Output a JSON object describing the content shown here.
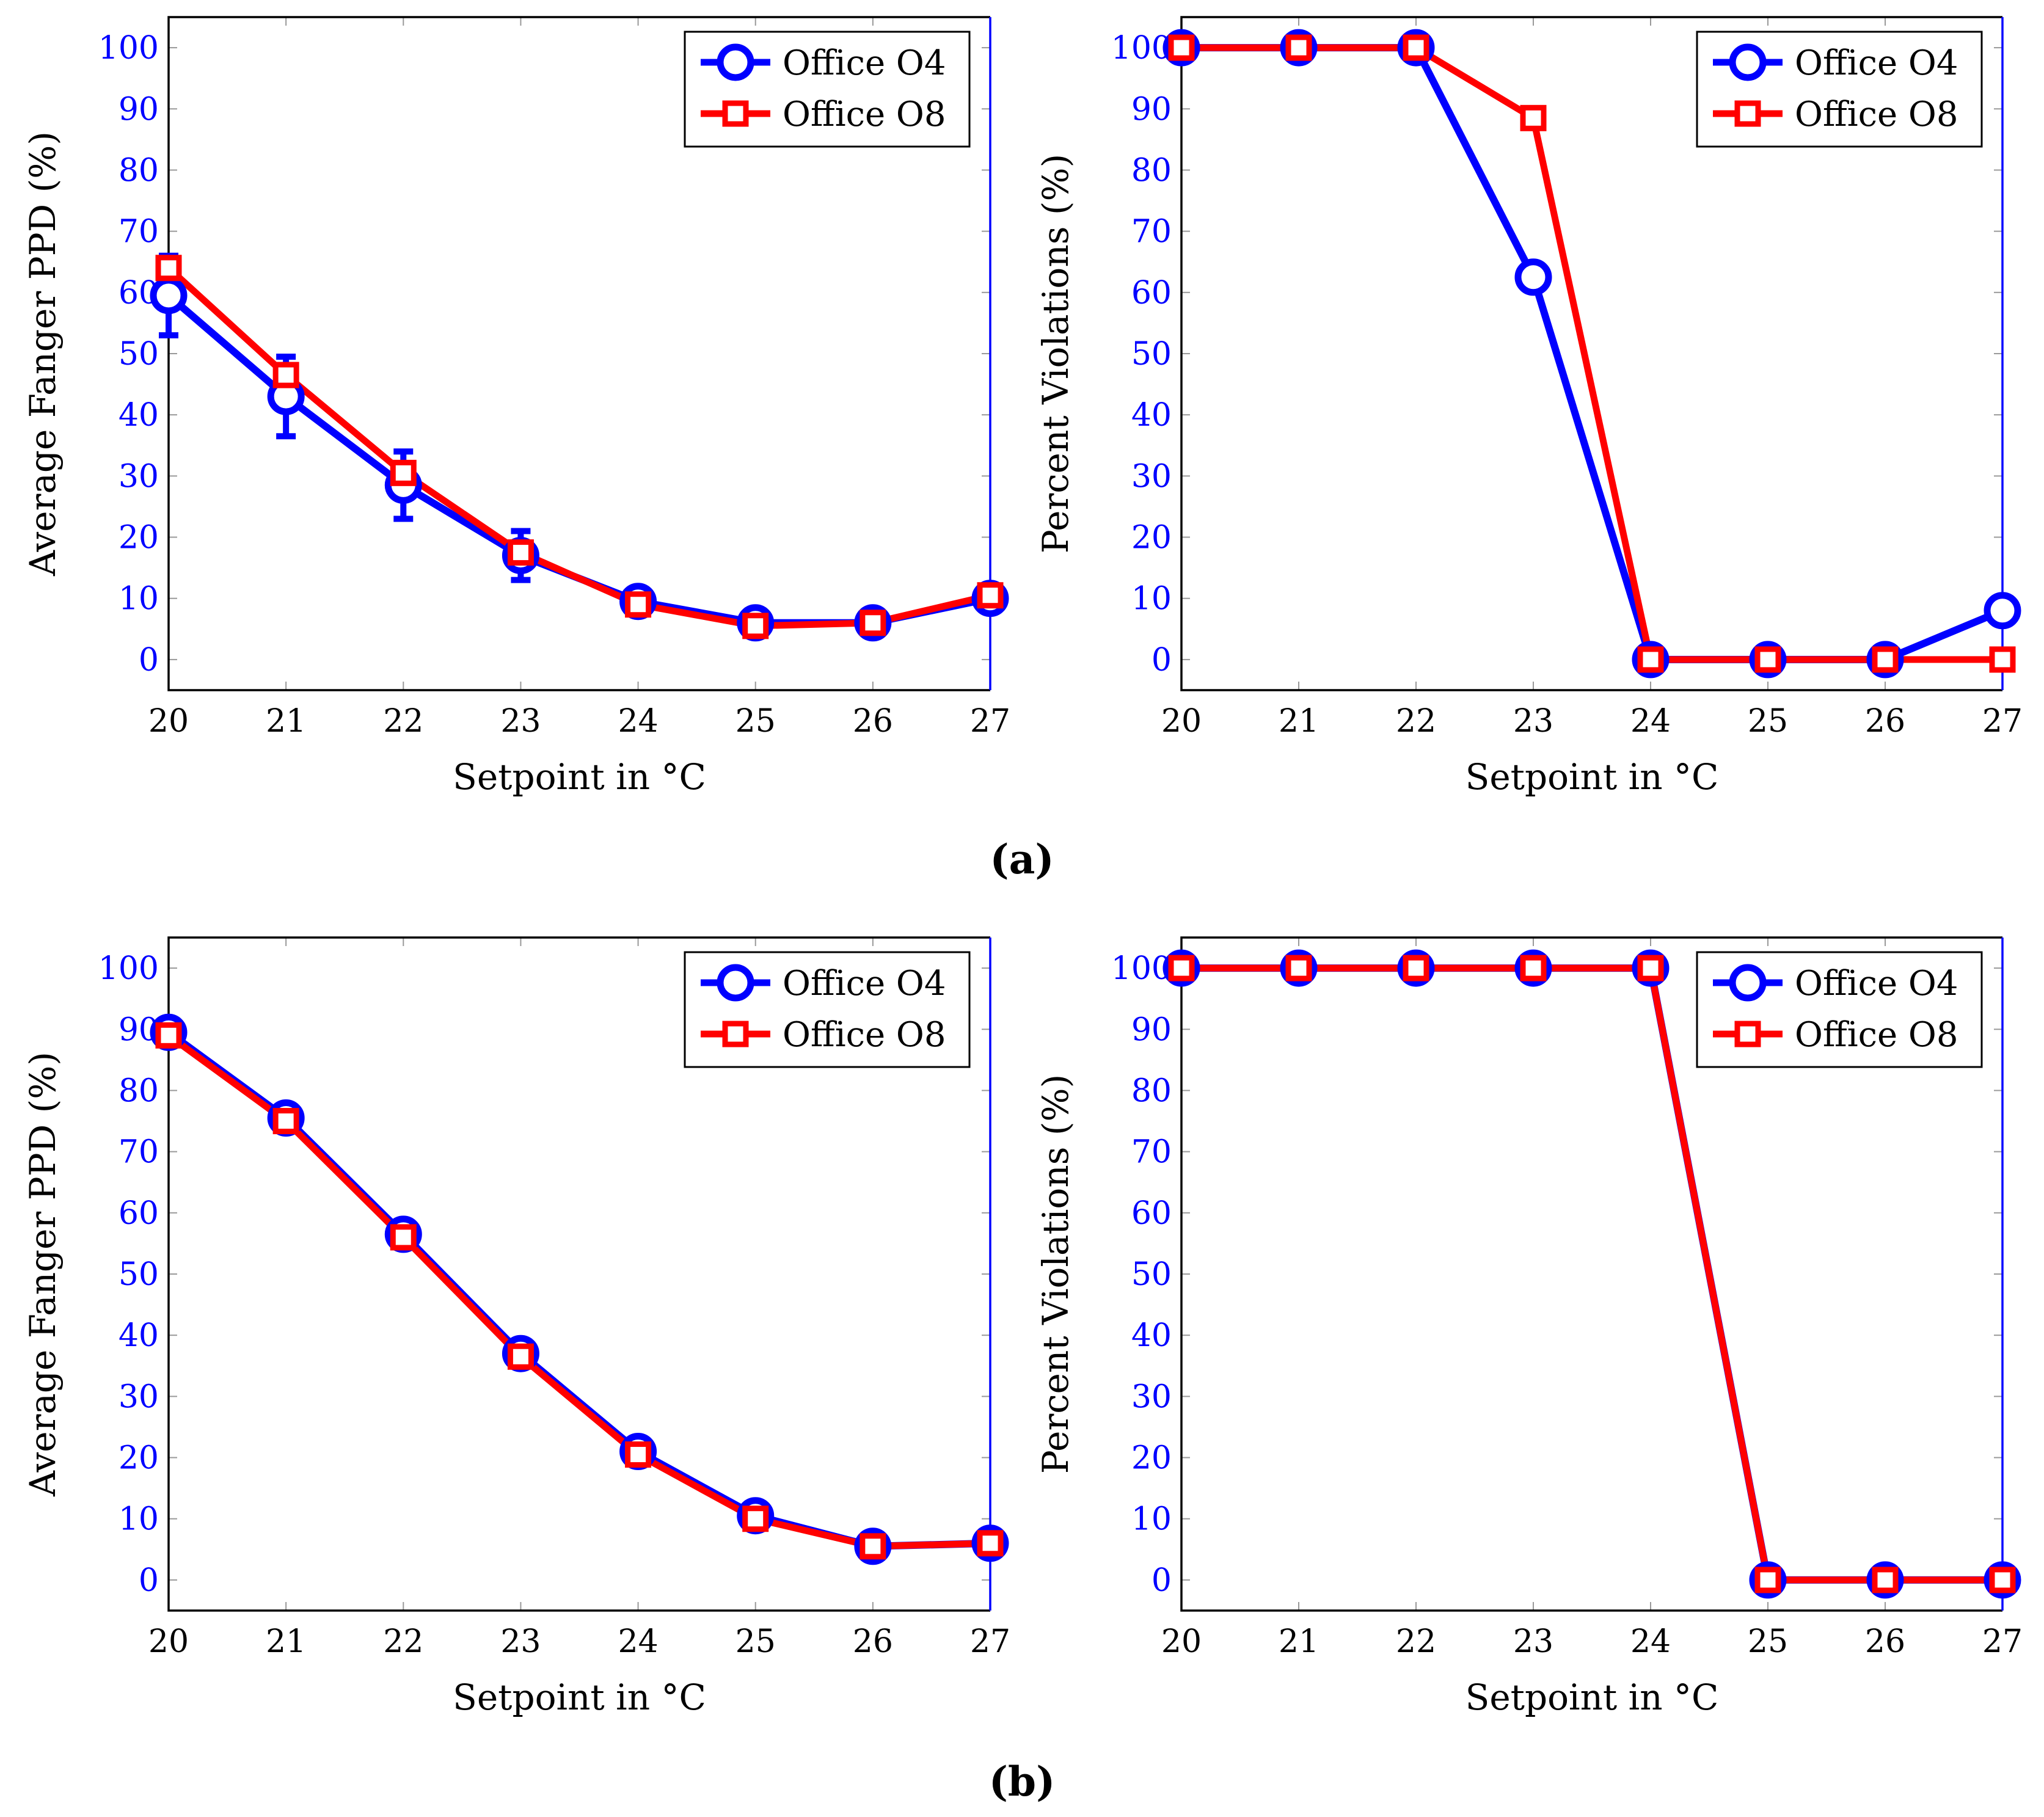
{
  "colors": {
    "o4": "#0000ff",
    "o8": "#ff0000",
    "tick_y": "#0000ff"
  },
  "figure_captions": {
    "a": "(a)",
    "b": "(b)"
  },
  "chart_data": [
    {
      "id": "a-ppd",
      "panel": "a",
      "type": "line",
      "x": [
        20,
        21,
        22,
        23,
        24,
        25,
        26,
        27
      ],
      "xlabel": "Setpoint in  °C",
      "ylabel": "Average Fanger PPD (%)",
      "xlim": [
        20,
        27
      ],
      "ylim": [
        -5,
        105
      ],
      "yticks": [
        0,
        10,
        20,
        30,
        40,
        50,
        60,
        70,
        80,
        90,
        100
      ],
      "legend_position": "top-right",
      "series": [
        {
          "name": "Office O4",
          "marker": "circle",
          "color": "o4",
          "values": [
            59.5,
            43,
            28.5,
            17,
            9.5,
            6,
            6,
            10
          ],
          "error": [
            6.5,
            6.5,
            5.5,
            4,
            1.5,
            0.5,
            0.5,
            2
          ]
        },
        {
          "name": "Office O8",
          "marker": "square",
          "color": "o8",
          "values": [
            64,
            46.5,
            30.5,
            17.5,
            9,
            5.5,
            6,
            10.5
          ]
        }
      ]
    },
    {
      "id": "a-viol",
      "panel": "a",
      "type": "line",
      "x": [
        20,
        21,
        22,
        23,
        24,
        25,
        26,
        27
      ],
      "xlabel": "Setpoint in  °C",
      "ylabel": "Percent Violations (%)",
      "xlim": [
        20,
        27
      ],
      "ylim": [
        -5,
        105
      ],
      "yticks": [
        0,
        10,
        20,
        30,
        40,
        50,
        60,
        70,
        80,
        90,
        100
      ],
      "legend_position": "top-right",
      "series": [
        {
          "name": "Office O4",
          "marker": "circle",
          "color": "o4",
          "values": [
            100,
            100,
            100,
            62.5,
            0,
            0,
            0,
            8
          ]
        },
        {
          "name": "Office O8",
          "marker": "square",
          "color": "o8",
          "values": [
            100,
            100,
            100,
            88.5,
            0,
            0,
            0,
            0
          ]
        }
      ]
    },
    {
      "id": "b-ppd",
      "panel": "b",
      "type": "line",
      "x": [
        20,
        21,
        22,
        23,
        24,
        25,
        26,
        27
      ],
      "xlabel": "Setpoint in  °C",
      "ylabel": "Average Fanger PPD (%)",
      "xlim": [
        20,
        27
      ],
      "ylim": [
        -5,
        105
      ],
      "yticks": [
        0,
        10,
        20,
        30,
        40,
        50,
        60,
        70,
        80,
        90,
        100
      ],
      "legend_position": "top-right",
      "series": [
        {
          "name": "Office O4",
          "marker": "circle",
          "color": "o4",
          "values": [
            89.5,
            75.5,
            56.5,
            37,
            21,
            10.5,
            5.5,
            6
          ]
        },
        {
          "name": "Office O8",
          "marker": "square",
          "color": "o8",
          "values": [
            89,
            75,
            56,
            36.5,
            20.5,
            10,
            5.5,
            6
          ]
        }
      ]
    },
    {
      "id": "b-viol",
      "panel": "b",
      "type": "line",
      "x": [
        20,
        21,
        22,
        23,
        24,
        25,
        26,
        27
      ],
      "xlabel": "Setpoint in  °C",
      "ylabel": "Percent Violations (%)",
      "xlim": [
        20,
        27
      ],
      "ylim": [
        -5,
        105
      ],
      "yticks": [
        0,
        10,
        20,
        30,
        40,
        50,
        60,
        70,
        80,
        90,
        100
      ],
      "legend_position": "top-right",
      "series": [
        {
          "name": "Office O4",
          "marker": "circle",
          "color": "o4",
          "values": [
            100,
            100,
            100,
            100,
            100,
            0,
            0,
            0
          ]
        },
        {
          "name": "Office O8",
          "marker": "square",
          "color": "o8",
          "values": [
            100,
            100,
            100,
            100,
            100,
            0,
            0,
            0
          ]
        }
      ]
    }
  ]
}
